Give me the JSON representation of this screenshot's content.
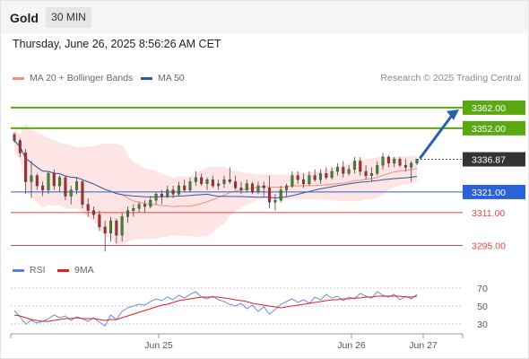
{
  "header": {
    "title": "Gold",
    "period": "30 MIN"
  },
  "timestamp": "Thursday, June 26, 2025 8:56:26 AM CET",
  "legend": {
    "bollinger": {
      "label": "MA 20 + Bollinger Bands",
      "color": "#f28b82"
    },
    "ma50": {
      "label": "MA 50",
      "color": "#2d5a9b"
    },
    "rsi": {
      "label": "RSI",
      "color": "#5c7fd6"
    },
    "rsi_ma": {
      "label": "9MA",
      "color": "#e02020"
    }
  },
  "credit": "Research © 2025 Trading Central",
  "chart_data": {
    "type": "candlestick",
    "instrument": "Gold",
    "timeframe": "30 MIN",
    "x_ticks": [
      "Jun 25",
      "Jun 26",
      "Jun 27"
    ],
    "ylim": [
      3290,
      3372
    ],
    "current_price": {
      "value": 3336.87,
      "label": "3336.87"
    },
    "levels": [
      {
        "label": "3362.00",
        "value": 3362.0,
        "kind": "resistance",
        "color": "#5aa814"
      },
      {
        "label": "3352.00",
        "value": 3352.0,
        "kind": "resistance",
        "color": "#5aa814"
      },
      {
        "label": "3321.00",
        "value": 3321.0,
        "kind": "pivot",
        "color": "#2b62d8"
      },
      {
        "label": "3311.00",
        "value": 3311.0,
        "kind": "support",
        "color": "#e04848"
      },
      {
        "label": "3295.00",
        "value": 3295.0,
        "kind": "support",
        "color": "#e04848"
      }
    ],
    "forecast_arrow": {
      "from": 3336.87,
      "to": 3362.0
    },
    "candles": [
      [
        3349,
        3350,
        3345,
        3346
      ],
      [
        3346,
        3347,
        3338,
        3340
      ],
      [
        3340,
        3342,
        3320,
        3326
      ],
      [
        3326,
        3336,
        3318,
        3329
      ],
      [
        3329,
        3330,
        3322,
        3324
      ],
      [
        3324,
        3326,
        3319,
        3322
      ],
      [
        3322,
        3331,
        3320,
        3330
      ],
      [
        3330,
        3332,
        3322,
        3324
      ],
      [
        3324,
        3329,
        3321,
        3328
      ],
      [
        3328,
        3329,
        3317,
        3319
      ],
      [
        3319,
        3324,
        3315,
        3322
      ],
      [
        3322,
        3328,
        3320,
        3326
      ],
      [
        3326,
        3327,
        3313,
        3315
      ],
      [
        3315,
        3318,
        3309,
        3312
      ],
      [
        3312,
        3314,
        3308,
        3310
      ],
      [
        3310,
        3312,
        3302,
        3304
      ],
      [
        3304,
        3307,
        3292,
        3301
      ],
      [
        3301,
        3309,
        3297,
        3307
      ],
      [
        3307,
        3308,
        3296,
        3300
      ],
      [
        3300,
        3311,
        3297,
        3309
      ],
      [
        3309,
        3314,
        3306,
        3312
      ],
      [
        3312,
        3315,
        3309,
        3313
      ],
      [
        3313,
        3316,
        3311,
        3315
      ],
      [
        3315,
        3317,
        3311,
        3314
      ],
      [
        3314,
        3319,
        3313,
        3317
      ],
      [
        3317,
        3321,
        3315,
        3320
      ],
      [
        3320,
        3322,
        3315,
        3319
      ],
      [
        3319,
        3324,
        3318,
        3322
      ],
      [
        3322,
        3324,
        3318,
        3320
      ],
      [
        3320,
        3326,
        3319,
        3324
      ],
      [
        3324,
        3327,
        3321,
        3322
      ],
      [
        3322,
        3328,
        3321,
        3326
      ],
      [
        3326,
        3331,
        3324,
        3328
      ],
      [
        3328,
        3330,
        3324,
        3325
      ],
      [
        3325,
        3328,
        3322,
        3327
      ],
      [
        3327,
        3329,
        3323,
        3324
      ],
      [
        3324,
        3327,
        3322,
        3325
      ],
      [
        3325,
        3329,
        3323,
        3327
      ],
      [
        3327,
        3333,
        3325,
        3326
      ],
      [
        3326,
        3329,
        3322,
        3323
      ],
      [
        3323,
        3326,
        3320,
        3322
      ],
      [
        3322,
        3327,
        3321,
        3325
      ],
      [
        3325,
        3326,
        3320,
        3321
      ],
      [
        3321,
        3326,
        3320,
        3324
      ],
      [
        3324,
        3326,
        3319,
        3323
      ],
      [
        3323,
        3329,
        3313,
        3316
      ],
      [
        3316,
        3320,
        3312,
        3317
      ],
      [
        3317,
        3324,
        3316,
        3322
      ],
      [
        3322,
        3325,
        3319,
        3324
      ],
      [
        3324,
        3331,
        3323,
        3329
      ],
      [
        3329,
        3331,
        3325,
        3327
      ],
      [
        3327,
        3330,
        3323,
        3325
      ],
      [
        3325,
        3331,
        3324,
        3329
      ],
      [
        3329,
        3332,
        3326,
        3327
      ],
      [
        3327,
        3332,
        3325,
        3330
      ],
      [
        3330,
        3333,
        3327,
        3328
      ],
      [
        3328,
        3333,
        3327,
        3331
      ],
      [
        3331,
        3335,
        3329,
        3333
      ],
      [
        3333,
        3336,
        3328,
        3330
      ],
      [
        3330,
        3334,
        3329,
        3332
      ],
      [
        3332,
        3338,
        3330,
        3336
      ],
      [
        3336,
        3338,
        3329,
        3331
      ],
      [
        3331,
        3334,
        3327,
        3329
      ],
      [
        3329,
        3333,
        3326,
        3330
      ],
      [
        3330,
        3336,
        3329,
        3334
      ],
      [
        3334,
        3340,
        3332,
        3338
      ],
      [
        3338,
        3339,
        3333,
        3335
      ],
      [
        3335,
        3338,
        3333,
        3337
      ],
      [
        3337,
        3338,
        3333,
        3334
      ],
      [
        3334,
        3337,
        3331,
        3333
      ],
      [
        3333,
        3336,
        3326,
        3335
      ],
      [
        3335,
        3337,
        3334,
        3337
      ]
    ],
    "rsi": {
      "levels": [
        70,
        50,
        30
      ],
      "label_ticks": [
        "70",
        "50",
        "30"
      ],
      "ylim": [
        20,
        80
      ],
      "values": [
        45,
        38,
        30,
        34,
        31,
        33,
        36,
        40,
        37,
        39,
        34,
        38,
        36,
        33,
        37,
        32,
        28,
        40,
        35,
        44,
        48,
        50,
        52,
        51,
        55,
        58,
        56,
        60,
        57,
        62,
        59,
        63,
        66,
        60,
        58,
        61,
        57,
        55,
        52,
        50,
        53,
        47,
        51,
        44,
        49,
        41,
        46,
        52,
        55,
        58,
        54,
        57,
        53,
        60,
        57,
        63,
        59,
        61,
        56,
        60,
        58,
        64,
        61,
        59,
        66,
        62,
        60,
        63,
        57,
        61,
        58,
        63
      ],
      "ma": [
        40,
        39,
        37,
        35,
        34,
        33,
        33,
        34,
        35,
        36,
        36,
        37,
        36,
        36,
        36,
        35,
        34,
        35,
        35,
        37,
        39,
        41,
        43,
        45,
        47,
        49,
        51,
        52,
        54,
        56,
        57,
        58,
        59,
        60,
        60,
        60,
        60,
        59,
        58,
        57,
        56,
        55,
        53,
        52,
        51,
        50,
        49,
        48,
        49,
        50,
        51,
        52,
        53,
        54,
        55,
        56,
        57,
        57,
        58,
        58,
        59,
        59,
        60,
        60,
        61,
        61,
        61,
        61,
        61,
        60,
        60,
        61
      ]
    }
  }
}
